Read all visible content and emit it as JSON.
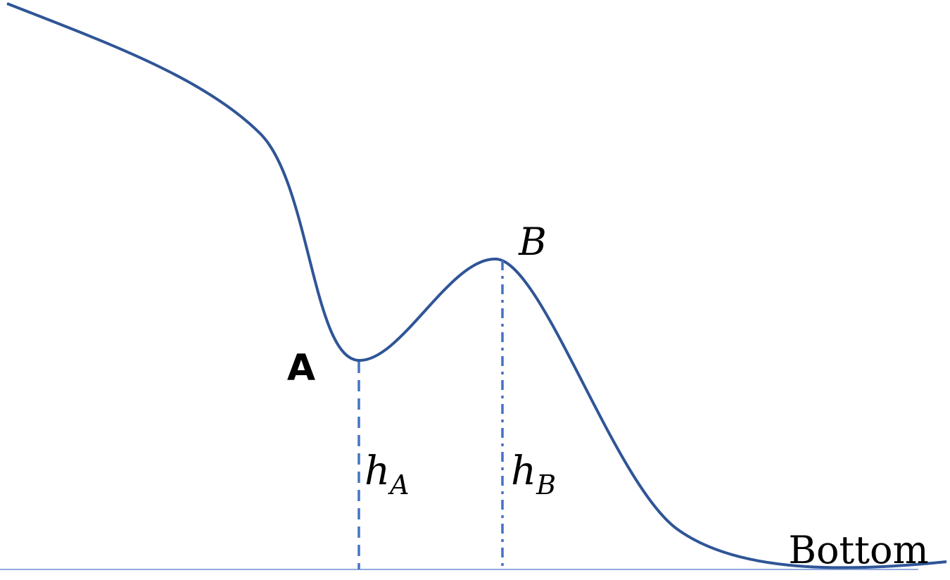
{
  "labels": {
    "point_a": "A",
    "point_b": "B",
    "height_a": {
      "base": "h",
      "sub": "A"
    },
    "height_b": {
      "base": "h",
      "sub": "B"
    },
    "bottom": "Bottom"
  }
}
